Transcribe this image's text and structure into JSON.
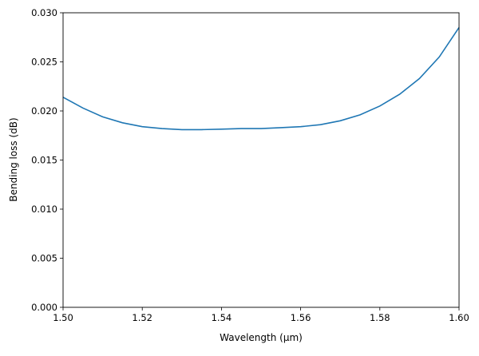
{
  "chart_data": {
    "type": "line",
    "title": "",
    "xlabel": "Wavelength (μm)",
    "ylabel": "Bending loss (dB)",
    "xlim": [
      1.5,
      1.6
    ],
    "ylim": [
      0.0,
      0.03
    ],
    "xticks": [
      "1.50",
      "1.52",
      "1.54",
      "1.56",
      "1.58",
      "1.60"
    ],
    "yticks": [
      "0.000",
      "0.005",
      "0.010",
      "0.015",
      "0.020",
      "0.025",
      "0.030"
    ],
    "grid": false,
    "series": [
      {
        "color": "#1f77b4",
        "x": [
          1.5,
          1.505,
          1.51,
          1.515,
          1.52,
          1.525,
          1.53,
          1.535,
          1.54,
          1.545,
          1.55,
          1.555,
          1.56,
          1.565,
          1.57,
          1.575,
          1.58,
          1.585,
          1.59,
          1.595,
          1.6
        ],
        "y": [
          0.0214,
          0.0203,
          0.0194,
          0.0188,
          0.0184,
          0.0182,
          0.0181,
          0.0181,
          0.01815,
          0.0182,
          0.0182,
          0.0183,
          0.0184,
          0.0186,
          0.019,
          0.0196,
          0.0205,
          0.0217,
          0.0233,
          0.0255,
          0.0285
        ]
      }
    ]
  }
}
